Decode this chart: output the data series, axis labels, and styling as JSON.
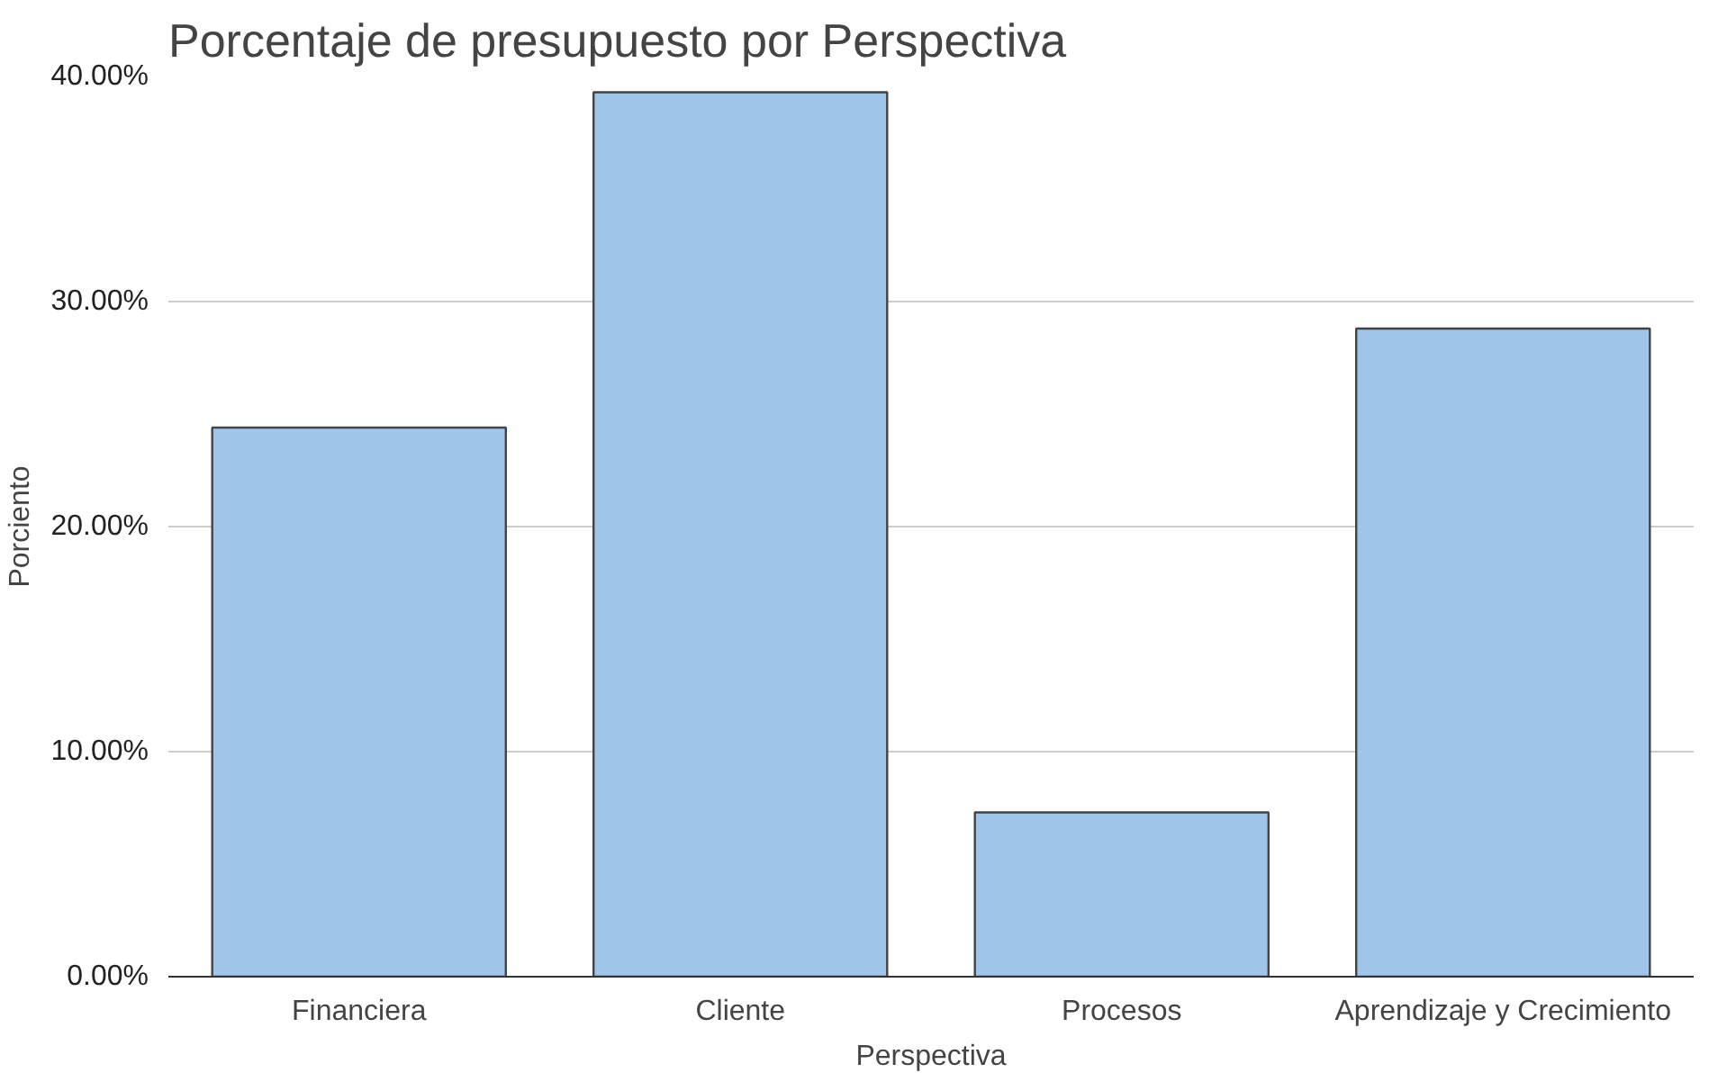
{
  "chart_data": {
    "type": "bar",
    "title": "Porcentaje de presupuesto por Perspectiva",
    "xlabel": "Perspectiva",
    "ylabel": "Porciento",
    "categories": [
      "Financiera",
      "Cliente",
      "Procesos",
      "Aprendizaje y Crecimiento"
    ],
    "values": [
      24.4,
      39.3,
      7.3,
      28.8
    ],
    "color": "#9fc5e8",
    "ylim": [
      0,
      40
    ],
    "yticks": [
      {
        "value": 0,
        "label": "0.00%"
      },
      {
        "value": 10,
        "label": "10.00%"
      },
      {
        "value": 20,
        "label": "20.00%"
      },
      {
        "value": 30,
        "label": "30.00%"
      },
      {
        "value": 40,
        "label": "40.00%"
      }
    ],
    "grid": "y"
  }
}
